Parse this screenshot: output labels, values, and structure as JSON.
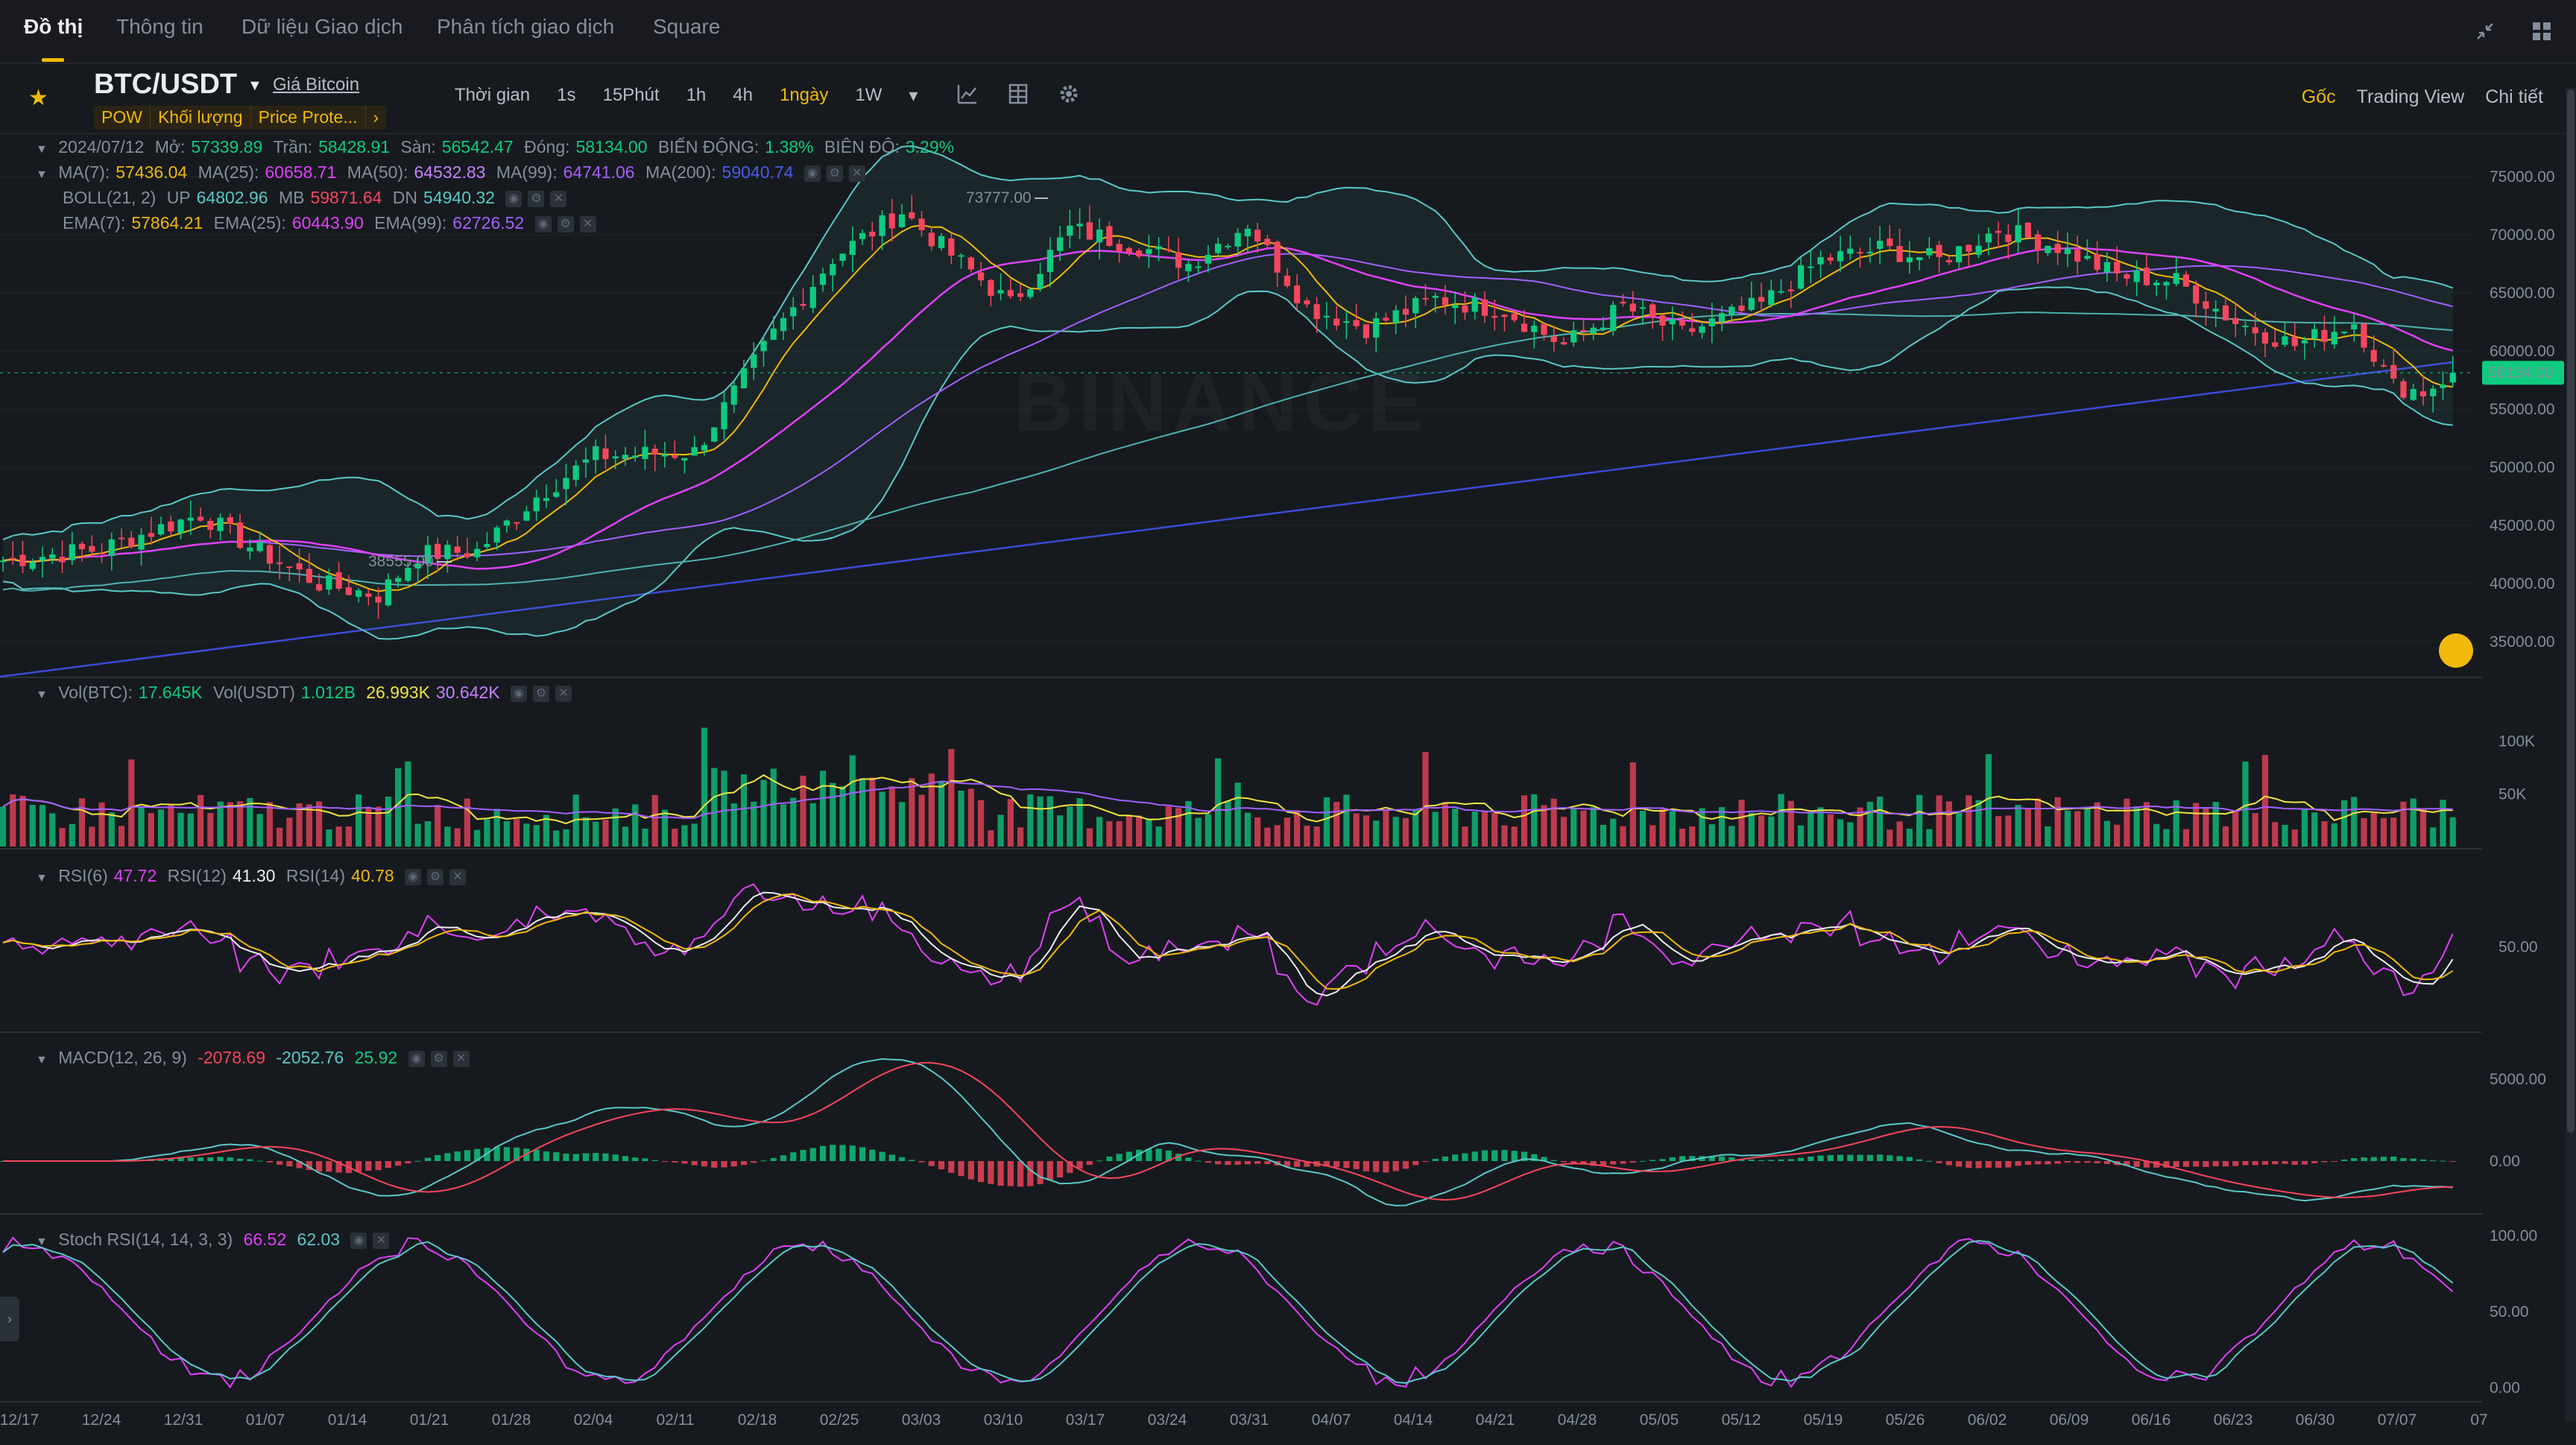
{
  "nav": {
    "tabs": [
      "Đồ thị",
      "Thông tin",
      "Dữ liệu Giao dịch",
      "Phân tích giao dịch",
      "Square"
    ],
    "active": 0
  },
  "symbol": {
    "pair": "BTC/USDT",
    "link": "Giá Bitcoin",
    "tags": [
      "POW",
      "Khối lượng",
      "Price Prote...",
      "›"
    ]
  },
  "intervals": {
    "label": "Thời gian",
    "items": [
      "1s",
      "15Phút",
      "1h",
      "4h",
      "1ngày",
      "1W"
    ],
    "active": "1ngày"
  },
  "view_links": [
    "Gốc",
    "Trading View",
    "Chi tiết"
  ],
  "active_view": "Gốc",
  "ohlc": {
    "date": "2024/07/12",
    "open_label": "Mở:",
    "open": "57339.89",
    "high_label": "Trần:",
    "high": "58428.91",
    "low_label": "Sàn:",
    "low": "56542.47",
    "close_label": "Đóng:",
    "close": "58134.00",
    "change_label": "BIẾN ĐỘNG:",
    "change": "1.38%",
    "amp_label": "BIÊN ĐỘ:",
    "amp": "3.29%"
  },
  "ma": {
    "ma7_label": "MA(7):",
    "ma7": "57436.04",
    "ma25_label": "MA(25):",
    "ma25": "60658.71",
    "ma50_label": "MA(50):",
    "ma50": "64532.83",
    "ma99_label": "MA(99):",
    "ma99": "64741.06",
    "ma200_label": "MA(200):",
    "ma200": "59040.74"
  },
  "boll": {
    "label": "BOLL(21, 2)",
    "up_label": "UP",
    "up": "64802.96",
    "mb_label": "MB",
    "mb": "59871.64",
    "dn_label": "DN",
    "dn": "54940.32"
  },
  "ema": {
    "ema7_label": "EMA(7):",
    "ema7": "57864.21",
    "ema25_label": "EMA(25):",
    "ema25": "60443.90",
    "ema99_label": "EMA(99):",
    "ema99": "62726.52"
  },
  "vol": {
    "label": "Vol(BTC):",
    "btc": "17.645K",
    "usdt_label": "Vol(USDT)",
    "usdt": "1.012B",
    "ma1": "26.993K",
    "ma2": "30.642K"
  },
  "rsi": {
    "rsi6_label": "RSI(6)",
    "rsi6": "47.72",
    "rsi12_label": "RSI(12)",
    "rsi12": "41.30",
    "rsi14_label": "RSI(14)",
    "rsi14": "40.78"
  },
  "macd": {
    "label": "MACD(12, 26, 9)",
    "dif": "-2078.69",
    "dea": "-2052.76",
    "hist": "25.92"
  },
  "stoch": {
    "label": "Stoch RSI(14, 14, 3, 3)",
    "k": "66.52",
    "d": "62.03"
  },
  "price_axis": [
    "75000.00",
    "70000.00",
    "65000.00",
    "60000.00",
    "55000.00",
    "50000.00",
    "45000.00",
    "40000.00",
    "35000.00"
  ],
  "vol_axis": [
    "100K",
    "50K"
  ],
  "rsi_axis": [
    "50.00"
  ],
  "macd_axis": [
    "5000.00",
    "0.00"
  ],
  "stoch_axis": [
    "100.00",
    "50.00",
    "0.00"
  ],
  "current_price": "58134.00",
  "high_marker": "73777.00",
  "low_marker": "38555.00",
  "watermark": "BINANCE",
  "colors": {
    "up": "#0ecb81",
    "down": "#f6465d",
    "accent": "#f0b90b",
    "ma7": "#f0b90b",
    "ma25": "#e040fb",
    "ma50": "#a35fff",
    "ma99": "#6f42ff",
    "ma200": "#3b4bd8",
    "boll": "#5ac8c8"
  },
  "chart_data": {
    "type": "candlestick",
    "x_ticks": [
      "12/17",
      "12/24",
      "12/31",
      "01/07",
      "01/14",
      "01/21",
      "01/28",
      "02/04",
      "02/11",
      "02/18",
      "02/25",
      "03/03",
      "03/10",
      "03/17",
      "03/24",
      "03/31",
      "04/07",
      "04/14",
      "04/21",
      "04/28",
      "05/05",
      "05/12",
      "05/19",
      "05/26",
      "06/02",
      "06/09",
      "06/16",
      "06/23",
      "06/30",
      "07/07",
      "07"
    ],
    "close_anchors": [
      [
        0,
        42000
      ],
      [
        10,
        43000
      ],
      [
        20,
        46000
      ],
      [
        25,
        43200
      ],
      [
        32,
        40000
      ],
      [
        38,
        39000
      ],
      [
        42,
        42500
      ],
      [
        48,
        42800
      ],
      [
        54,
        47500
      ],
      [
        60,
        51000
      ],
      [
        70,
        51300
      ],
      [
        78,
        61500
      ],
      [
        84,
        68000
      ],
      [
        91,
        72000
      ],
      [
        95,
        69000
      ],
      [
        102,
        64000
      ],
      [
        108,
        70500
      ],
      [
        115,
        69000
      ],
      [
        120,
        67500
      ],
      [
        126,
        71000
      ],
      [
        132,
        63800
      ],
      [
        138,
        62000
      ],
      [
        145,
        64500
      ],
      [
        152,
        63500
      ],
      [
        158,
        60500
      ],
      [
        164,
        63800
      ],
      [
        170,
        61500
      ],
      [
        178,
        64000
      ],
      [
        184,
        67800
      ],
      [
        190,
        68800
      ],
      [
        196,
        67800
      ],
      [
        202,
        70500
      ],
      [
        208,
        69000
      ],
      [
        214,
        66500
      ],
      [
        220,
        66000
      ],
      [
        226,
        62500
      ],
      [
        232,
        60500
      ],
      [
        238,
        62500
      ],
      [
        242,
        57000
      ],
      [
        245,
        56500
      ],
      [
        248,
        58134
      ]
    ],
    "ma200_range": [
      32000,
      59040.74
    ],
    "y_range": [
      32000,
      77500
    ]
  }
}
